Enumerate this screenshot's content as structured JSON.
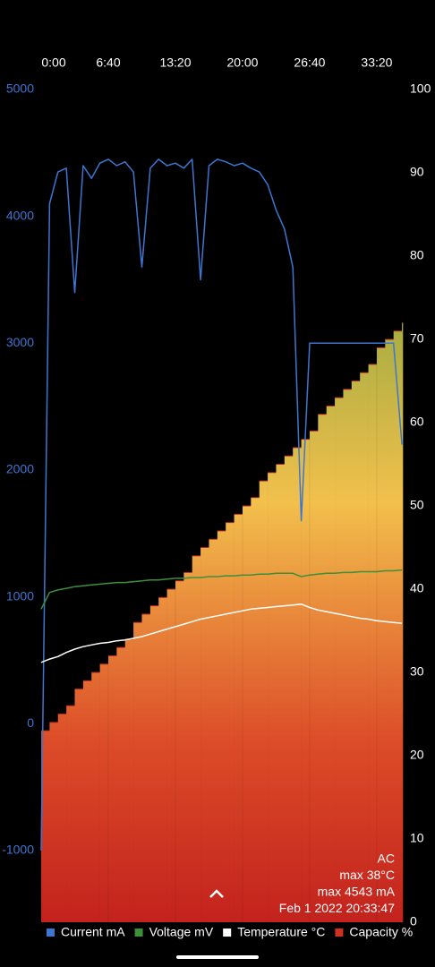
{
  "chart_data": {
    "type": "line",
    "x": [
      0,
      50,
      100,
      150,
      200,
      250,
      300,
      350,
      400,
      450,
      500,
      550,
      600,
      650,
      700,
      750,
      800,
      850,
      900,
      950,
      1000,
      1050,
      1100,
      1150,
      1200,
      1250,
      1300,
      1350,
      1400,
      1450,
      1500,
      1550,
      1600,
      1650,
      1700,
      1750,
      1800,
      1850,
      1900,
      1950,
      2000,
      2050,
      2100,
      2150
    ],
    "xlim": [
      0,
      2155
    ],
    "xticks": [
      {
        "value": 0,
        "label": "0:00"
      },
      {
        "value": 400,
        "label": "6:40"
      },
      {
        "value": 800,
        "label": "13:20"
      },
      {
        "value": 1200,
        "label": "20:00"
      },
      {
        "value": 1600,
        "label": "26:40"
      },
      {
        "value": 2000,
        "label": "33:20"
      }
    ],
    "ylim": [
      -1565,
      5000
    ],
    "yticks": [
      -1000,
      0,
      1000,
      2000,
      3000,
      4000,
      5000
    ],
    "y2lim": [
      0,
      100
    ],
    "y2ticks": [
      0,
      10,
      20,
      30,
      40,
      50,
      60,
      70,
      80,
      90,
      100
    ],
    "series": [
      {
        "name": "Current mA",
        "color": "#3d76d1",
        "values": [
          -1000,
          4100,
          4350,
          4380,
          3400,
          4400,
          4300,
          4420,
          4450,
          4400,
          4430,
          4350,
          3600,
          4380,
          4450,
          4400,
          4420,
          4380,
          4450,
          3500,
          4400,
          4450,
          4430,
          4400,
          4420,
          4380,
          4350,
          4250,
          4050,
          3900,
          3600,
          1600,
          3000,
          3000,
          3000,
          3000,
          3000,
          3000,
          3000,
          3000,
          3000,
          3000,
          3000,
          2200
        ]
      },
      {
        "name": "Voltage mV",
        "color": "#3d8f3a",
        "axis": "y2",
        "values": [
          37.6,
          39.6,
          39.9,
          40.1,
          40.3,
          40.4,
          40.5,
          40.6,
          40.7,
          40.8,
          40.8,
          40.9,
          41.0,
          41.1,
          41.1,
          41.2,
          41.3,
          41.3,
          41.4,
          41.4,
          41.5,
          41.5,
          41.6,
          41.6,
          41.7,
          41.7,
          41.8,
          41.8,
          41.9,
          41.9,
          41.9,
          41.5,
          41.7,
          41.8,
          41.9,
          41.9,
          42.0,
          42.0,
          42.1,
          42.1,
          42.1,
          42.2,
          42.2,
          42.3
        ]
      },
      {
        "name": "Temperature °C",
        "color": "#ffffff",
        "axis": "y2",
        "values": [
          31.2,
          31.6,
          31.9,
          32.4,
          32.8,
          33.1,
          33.3,
          33.5,
          33.6,
          33.8,
          33.9,
          34.1,
          34.3,
          34.6,
          34.9,
          35.2,
          35.5,
          35.8,
          36.1,
          36.4,
          36.6,
          36.8,
          37.0,
          37.2,
          37.4,
          37.6,
          37.7,
          37.8,
          37.9,
          38.0,
          38.1,
          38.2,
          37.8,
          37.5,
          37.3,
          37.1,
          36.9,
          36.7,
          36.5,
          36.4,
          36.2,
          36.1,
          36.0,
          35.9
        ]
      },
      {
        "name": "Capacity %",
        "color": "#d0301f",
        "axis": "y2",
        "style": "step-area",
        "values": [
          23,
          24,
          25,
          26,
          28,
          29,
          30,
          31,
          32,
          33,
          34,
          36,
          37,
          38,
          39,
          40,
          41,
          42,
          44,
          45,
          46,
          47,
          48,
          49,
          50,
          51,
          53,
          54,
          55,
          56,
          57,
          58,
          59,
          61,
          62,
          63,
          64,
          65,
          66,
          67,
          69,
          70,
          71,
          72
        ]
      }
    ],
    "annotations": [
      "AC",
      "max 38°C",
      "max 4543 mA",
      "Feb 1 2022 20:33:47"
    ]
  }
}
